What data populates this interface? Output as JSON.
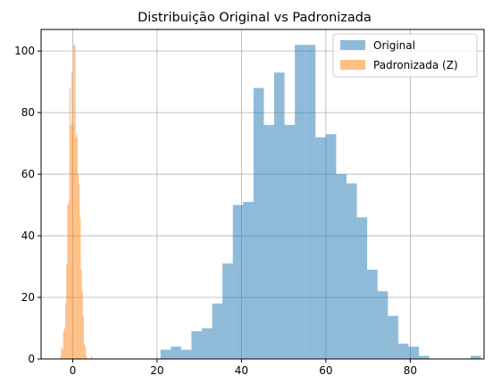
{
  "chart_data": {
    "type": "histogram",
    "title": "Distribuição Original vs Padronizada",
    "xlabel": "",
    "ylabel": "",
    "xlim": [
      -7.5,
      97.5
    ],
    "ylim": [
      0,
      107
    ],
    "xticks": [
      0,
      20,
      40,
      60,
      80
    ],
    "yticks": [
      0,
      20,
      40,
      60,
      80,
      100
    ],
    "grid": true,
    "legend_position": "top-right",
    "series": [
      {
        "name": "Original",
        "color": "#1f77b4",
        "alpha": 0.5,
        "bin_start": 20.8,
        "bin_width": 2.45,
        "counts": [
          3,
          4,
          3,
          9,
          10,
          18,
          31,
          50,
          51,
          88,
          76,
          93,
          76,
          102,
          102,
          72,
          73,
          60,
          57,
          46,
          29,
          22,
          14,
          5,
          4,
          1,
          0,
          0,
          0,
          0,
          1
        ]
      },
      {
        "name": "Padronizada (Z)",
        "color": "#ff7f0e",
        "alpha": 0.5,
        "bin_start": -3.0,
        "bin_width": 0.245,
        "counts": [
          1,
          4,
          3,
          9,
          10,
          18,
          31,
          50,
          51,
          88,
          76,
          93,
          76,
          102,
          102,
          72,
          73,
          60,
          57,
          46,
          29,
          22,
          14,
          5,
          4,
          1,
          0,
          0,
          0,
          0,
          1
        ]
      }
    ]
  }
}
